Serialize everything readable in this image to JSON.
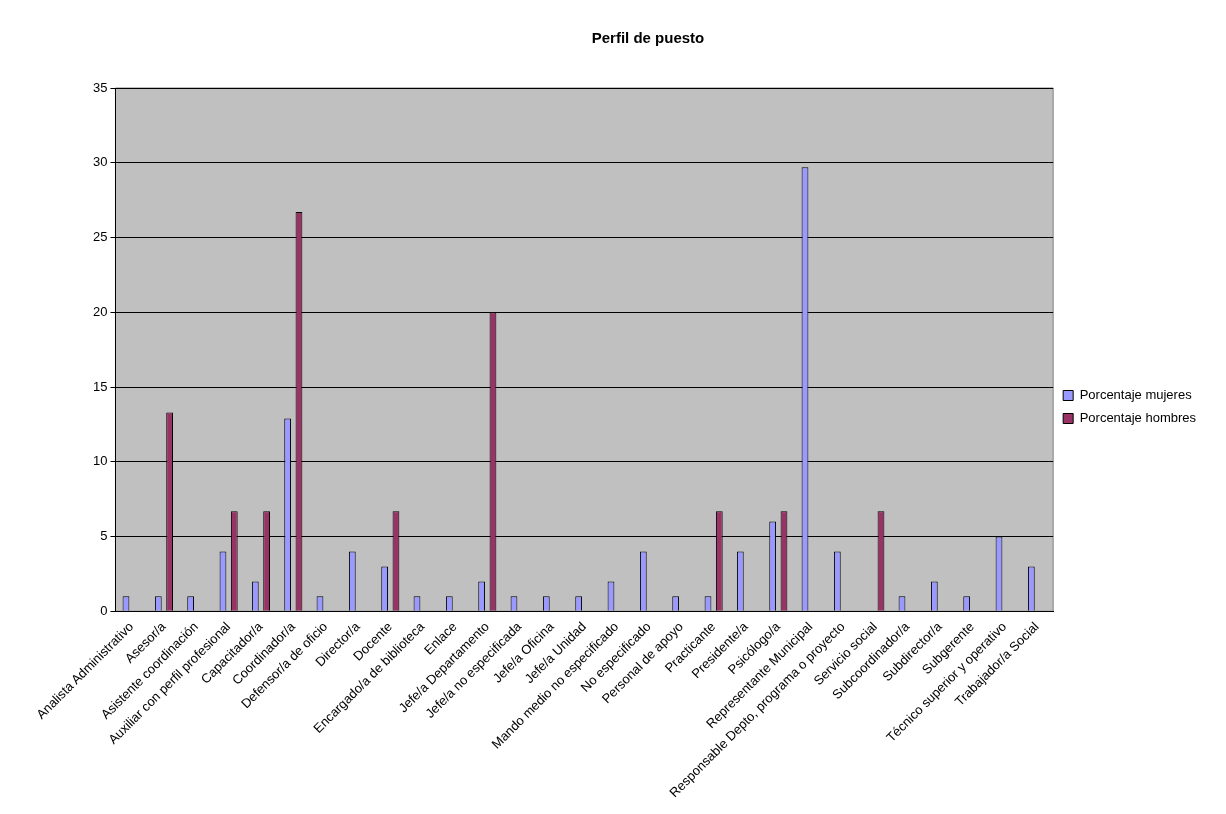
{
  "chart_data": {
    "type": "bar",
    "title": "Perfil de puesto",
    "categories": [
      "Analista Administrativo",
      "Asesor/a",
      "Asistente coordinación",
      "Auxiliar con perfil profesional",
      "Capacitador/a",
      "Coordinador/a",
      "Defensor/a de oficio",
      "Director/a",
      "Docente",
      "Encargado/a de biblioteca",
      "Enlace",
      "Jefe/a Departamento",
      "Jefe/a no especificada",
      "Jefe/a Oficina",
      "Jefe/a Unidad",
      "Mando medio no especificado",
      "No especificado",
      "Personal de apoyo",
      "Practicante",
      "Presidente/a",
      "Psicólogo/a",
      "Representante Municipal",
      "Responsable Depto, programa o proyecto",
      "Servicio social",
      "Subcoordinador/a",
      "Subdirector/a",
      "Subgerente",
      "Técnico superior y operativo",
      "Trabajador/a Social"
    ],
    "series": [
      {
        "name": "Porcentaje mujeres",
        "color": "#9999ff",
        "values": [
          1,
          1,
          1,
          4,
          2,
          12.9,
          1,
          4,
          3,
          1,
          1,
          2,
          1,
          1,
          1,
          2,
          4,
          1,
          1,
          4,
          6,
          29.7,
          4,
          0,
          1,
          2,
          1,
          5,
          3
        ]
      },
      {
        "name": "Porcentaje hombres",
        "color": "#993366",
        "values": [
          0,
          13.3,
          0,
          6.7,
          6.7,
          26.7,
          0,
          0,
          6.7,
          0,
          0,
          20,
          0,
          0,
          0,
          0,
          0,
          0,
          6.7,
          0,
          6.7,
          0,
          0,
          6.7,
          0,
          0,
          0,
          0,
          0
        ]
      }
    ],
    "ylim": [
      0,
      35
    ],
    "yticks": [
      0,
      5,
      10,
      15,
      20,
      25,
      30,
      35
    ],
    "grid": "y",
    "legend": "right"
  }
}
